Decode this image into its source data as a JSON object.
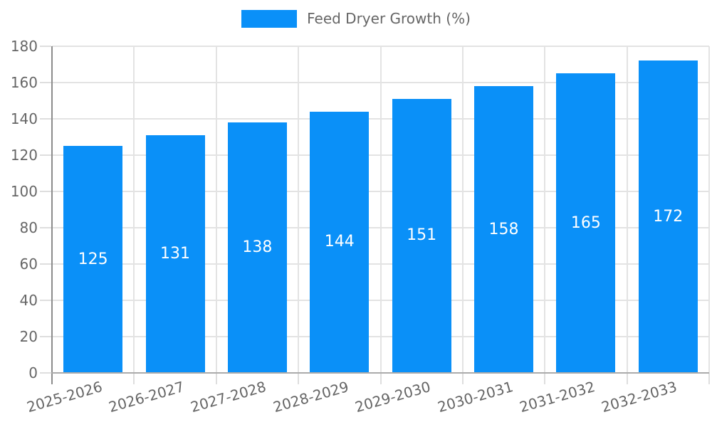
{
  "legend": {
    "label": "Feed Dryer Growth (%)"
  },
  "chart_data": {
    "type": "bar",
    "title": "",
    "xlabel": "",
    "ylabel": "",
    "categories": [
      "2025-2026",
      "2026-2027",
      "2027-2028",
      "2028-2029",
      "2029-2030",
      "2030-2031",
      "2031-2032",
      "2032-2033"
    ],
    "series": [
      {
        "name": "Feed Dryer Growth (%)",
        "values": [
          125,
          131,
          138,
          144,
          151,
          158,
          165,
          172
        ]
      }
    ],
    "value_labels_shown": true,
    "ylim": [
      0,
      180
    ],
    "ytick_step": 20,
    "yticks": [
      0,
      20,
      40,
      60,
      80,
      100,
      120,
      140,
      160,
      180
    ],
    "grid": true,
    "legend_position": "top-center",
    "x_tick_rotation_deg": -16,
    "colors": {
      "bar": "#0a90f8",
      "value_label": "#ffffff",
      "grid": "#e3e3e3",
      "tick": "#dedede",
      "y_axis_line": "#8c8c8c",
      "x_axis_line": "#ababab",
      "axis_label_text": "#666666",
      "legend_text": "#666666"
    }
  }
}
